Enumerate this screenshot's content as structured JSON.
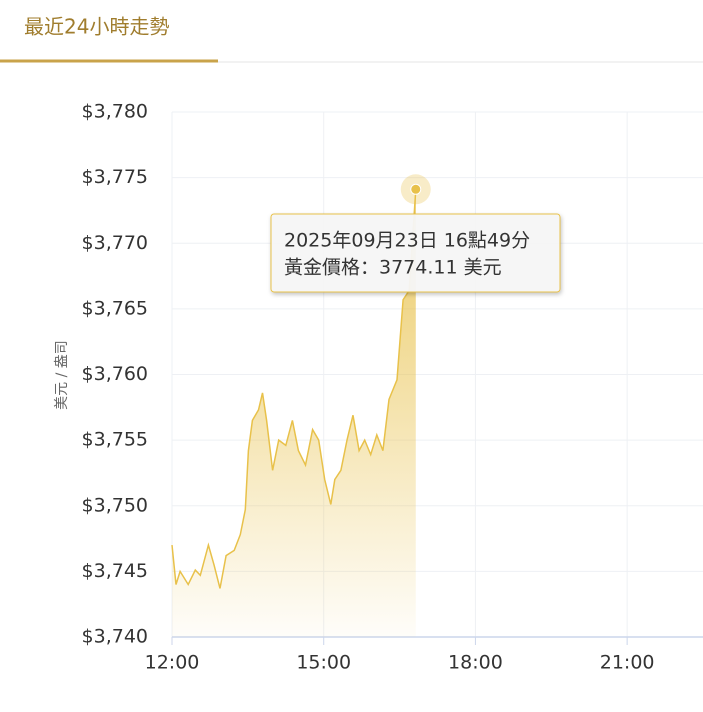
{
  "tab_title": "最近24小時走勢",
  "chart_data": {
    "type": "area",
    "color": "#e8c14a",
    "y_label": "美元 / 盎司",
    "x": [
      12.0,
      12.08,
      12.16,
      12.32,
      12.46,
      12.56,
      12.72,
      12.83,
      12.95,
      13.07,
      13.23,
      13.35,
      13.45,
      13.51,
      13.59,
      13.71,
      13.79,
      13.87,
      13.99,
      14.11,
      14.25,
      14.38,
      14.5,
      14.64,
      14.78,
      14.9,
      15.02,
      15.14,
      15.22,
      15.34,
      15.46,
      15.58,
      15.7,
      15.81,
      15.93,
      16.05,
      16.17,
      16.29,
      16.45,
      16.57,
      16.69,
      16.82
    ],
    "values": [
      3747.0,
      3744.0,
      3745.0,
      3744.0,
      3745.1,
      3744.7,
      3747.0,
      3745.5,
      3743.7,
      3746.2,
      3746.6,
      3747.8,
      3749.7,
      3754.2,
      3756.5,
      3757.3,
      3758.6,
      3756.5,
      3752.7,
      3755.0,
      3754.6,
      3756.5,
      3754.2,
      3753.1,
      3755.8,
      3755.0,
      3752.0,
      3750.1,
      3752.0,
      3752.7,
      3755.0,
      3756.9,
      3754.2,
      3755.0,
      3753.9,
      3755.4,
      3754.2,
      3758.1,
      3759.6,
      3765.7,
      3766.4,
      3774.11
    ],
    "xlim": [
      12,
      22.5
    ],
    "xticks": [
      {
        "value": 12,
        "label": "12:00"
      },
      {
        "value": 15,
        "label": "15:00"
      },
      {
        "value": 18,
        "label": "18:00"
      },
      {
        "value": 21,
        "label": "21:00"
      }
    ],
    "ylim": [
      3740,
      3780
    ],
    "yticks": [
      {
        "value": 3740,
        "label": "$3,740"
      },
      {
        "value": 3745,
        "label": "$3,745"
      },
      {
        "value": 3750,
        "label": "$3,750"
      },
      {
        "value": 3755,
        "label": "$3,755"
      },
      {
        "value": 3760,
        "label": "$3,760"
      },
      {
        "value": 3765,
        "label": "$3,765"
      },
      {
        "value": 3770,
        "label": "$3,770"
      },
      {
        "value": 3775,
        "label": "$3,775"
      },
      {
        "value": 3780,
        "label": "$3,780"
      }
    ],
    "grid": true,
    "tooltip": {
      "lines": [
        "2025年09月23日 16點49分",
        "黃金價格：3774.11 美元"
      ]
    }
  }
}
